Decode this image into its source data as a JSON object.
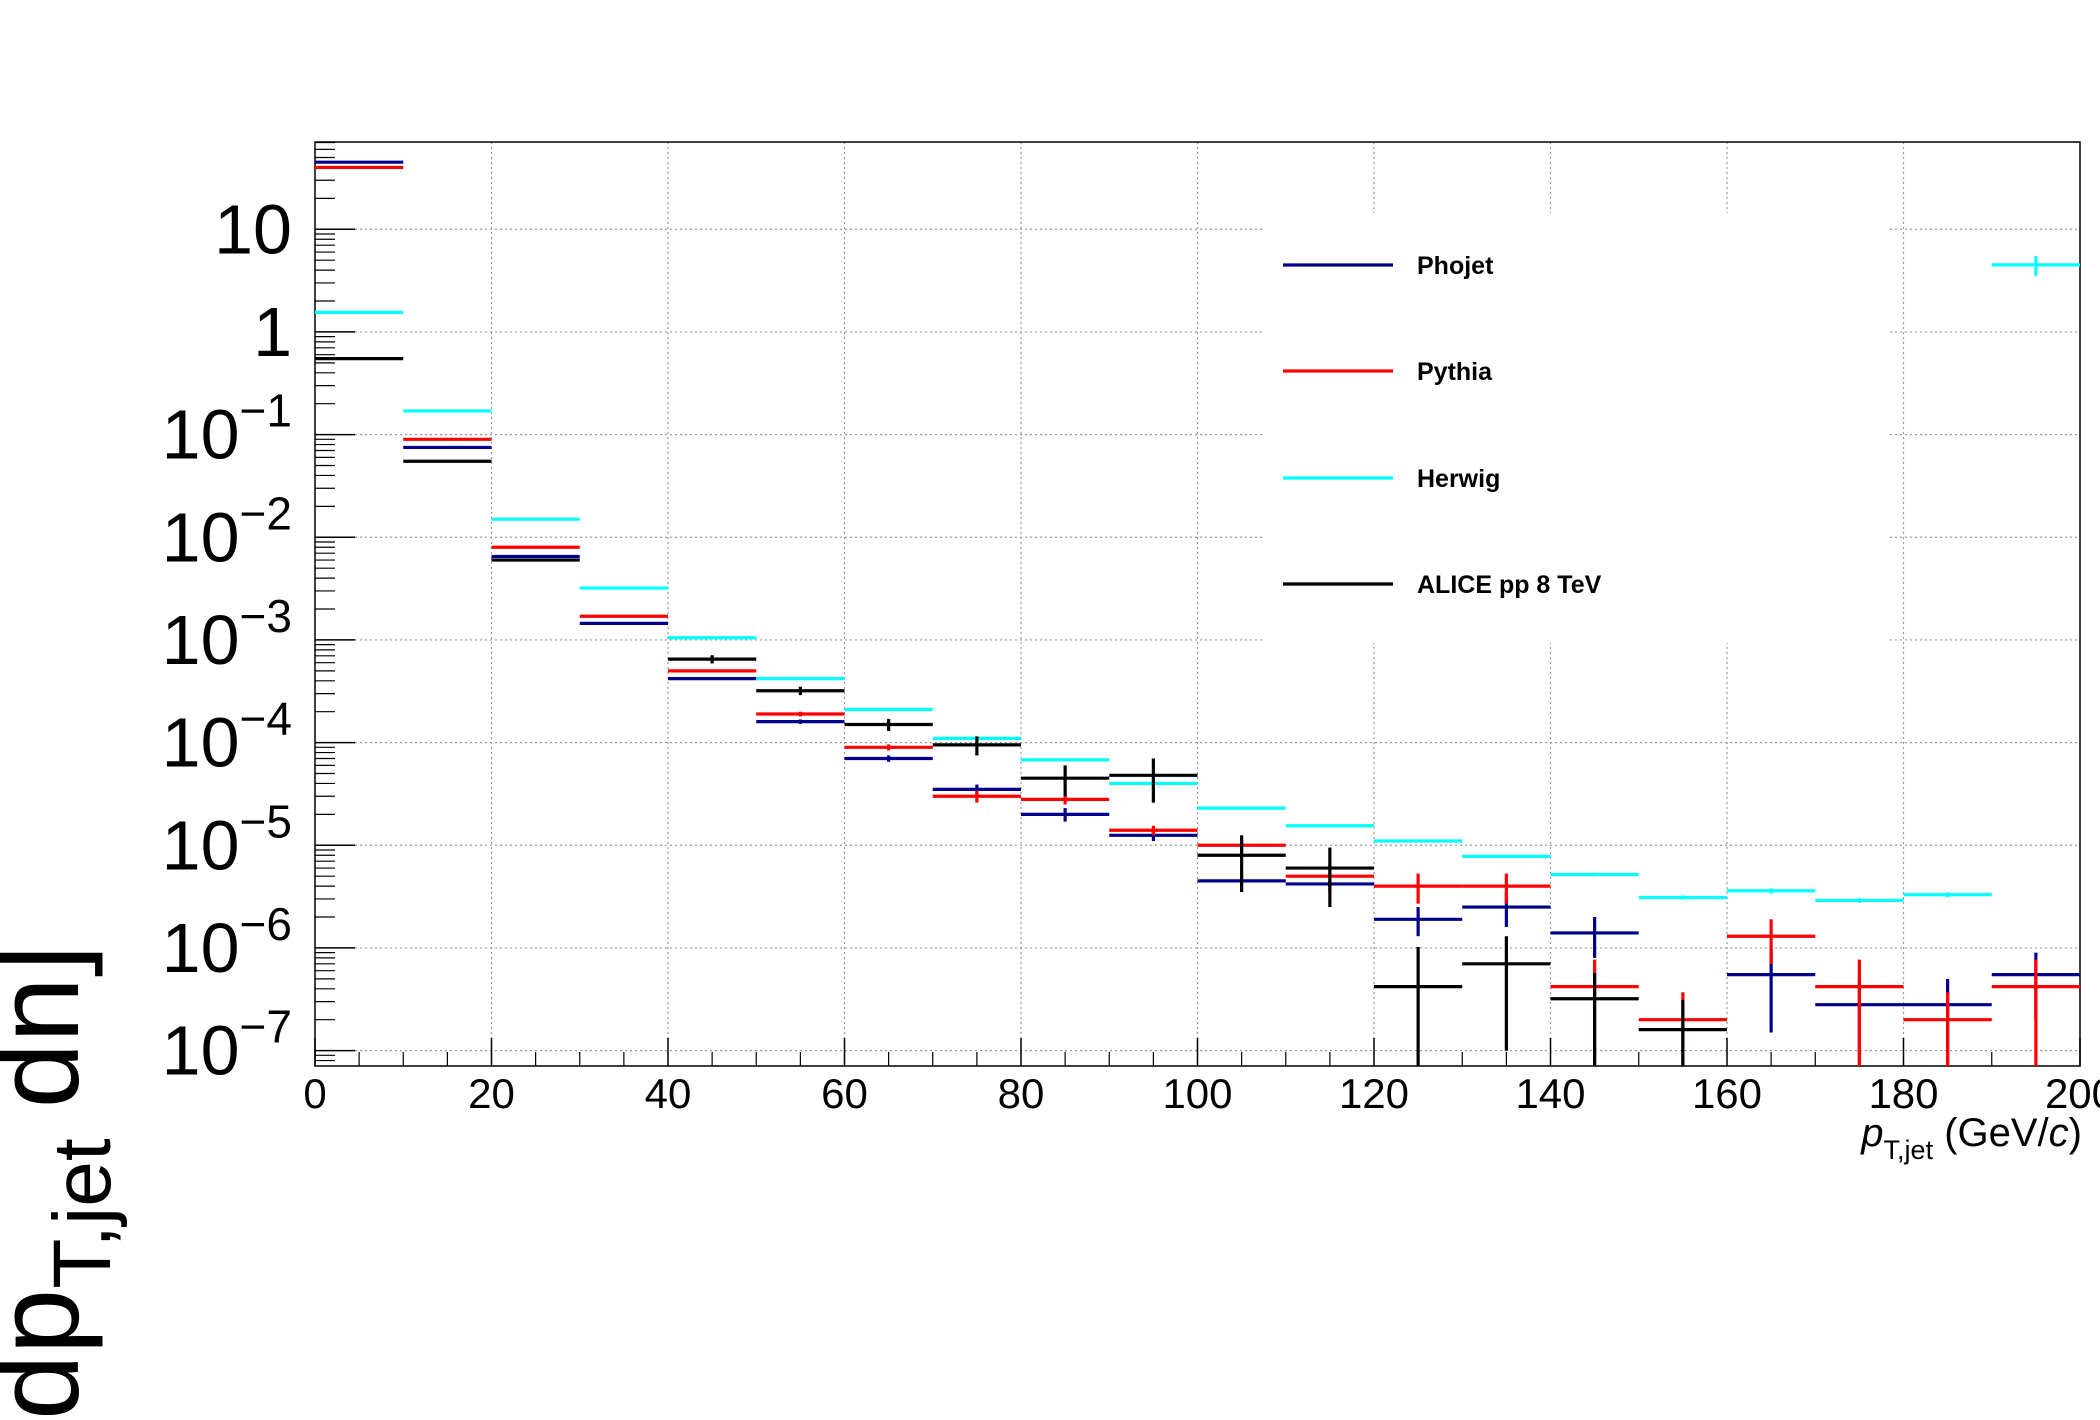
{
  "chart_data": {
    "type": "scatter",
    "title": "",
    "xlabel_main": "p",
    "xlabel_sub": "T,jet",
    "xlabel_unit_open": " (GeV/",
    "xlabel_unit_c": "c",
    "xlabel_unit_close": ")",
    "ylabel_main": "dp",
    "ylabel_sub": "T,jet",
    "ylabel_tail": "dn]",
    "xlim": [
      0,
      200
    ],
    "ylim_log10": [
      -7.15,
      1.85
    ],
    "y_scale": "log",
    "grid": true,
    "legend_position": "top-right",
    "x_ticks": [
      "0",
      "20",
      "40",
      "60",
      "80",
      "100",
      "120",
      "140",
      "160",
      "180",
      "200"
    ],
    "y_ticks": [
      {
        "base": "10",
        "exp": ""
      },
      {
        "base": "1",
        "exp": ""
      },
      {
        "base": "10",
        "exp": "−1"
      },
      {
        "base": "10",
        "exp": "−2"
      },
      {
        "base": "10",
        "exp": "−3"
      },
      {
        "base": "10",
        "exp": "−4"
      },
      {
        "base": "10",
        "exp": "−5"
      },
      {
        "base": "10",
        "exp": "−6"
      },
      {
        "base": "10",
        "exp": "−7"
      }
    ],
    "bin_edges": [
      0,
      10,
      20,
      30,
      40,
      50,
      60,
      70,
      80,
      90,
      100,
      110,
      120,
      130,
      140,
      150,
      160,
      170,
      180,
      190,
      200
    ],
    "series": [
      {
        "name": "Phojet",
        "color": "#00008b",
        "values": [
          45,
          0.075,
          0.0065,
          0.00145,
          0.00042,
          0.00016,
          7e-05,
          3.5e-05,
          2e-05,
          1.25e-05,
          4.5e-06,
          4.2e-06,
          1.9e-06,
          2.5e-06,
          1.4e-06,
          null,
          5.5e-07,
          2.8e-07,
          2.8e-07,
          5.5e-07
        ],
        "errors": [
          0,
          0,
          0,
          0,
          0,
          8e-06,
          5e-06,
          4e-06,
          3e-06,
          1.5e-06,
          3e-07,
          3e-07,
          6e-07,
          9e-07,
          6e-07,
          null,
          4e-07,
          2.2e-07,
          2.2e-07,
          3.5e-07
        ]
      },
      {
        "name": "Pythia",
        "color": "#ff0000",
        "values": [
          40,
          0.09,
          0.008,
          0.0017,
          0.0005,
          0.00019,
          9e-05,
          3e-05,
          2.8e-05,
          1.4e-05,
          1e-05,
          5e-06,
          4e-06,
          4e-06,
          4.2e-07,
          2e-07,
          1.3e-06,
          4.2e-07,
          2e-07,
          4.2e-07
        ],
        "errors": [
          0,
          0,
          0,
          0,
          0,
          1e-05,
          6e-06,
          4e-06,
          3e-06,
          1.5e-06,
          1.5e-06,
          1.5e-06,
          1.3e-06,
          1.3e-06,
          3.5e-07,
          1.7e-07,
          6e-07,
          3.5e-07,
          1.7e-07,
          3.5e-07
        ]
      },
      {
        "name": "Herwig",
        "color": "#00ffff",
        "values": [
          1.55,
          0.17,
          0.015,
          0.0032,
          0.00105,
          0.00042,
          0.00021,
          0.00011,
          6.8e-05,
          4e-05,
          2.3e-05,
          1.55e-05,
          1.1e-05,
          7.8e-06,
          5.2e-06,
          3.1e-06,
          3.6e-06,
          2.9e-06,
          3.3e-06,
          4.5
        ],
        "errors": [
          0.03,
          0.003,
          0.0003,
          6e-05,
          2e-05,
          8e-06,
          4e-06,
          2e-06,
          1.2e-06,
          6e-06,
          5e-07,
          3e-07,
          2e-07,
          2e-07,
          2e-07,
          1.5e-07,
          2e-07,
          1.5e-07,
          1.8e-07,
          1.0
        ]
      },
      {
        "name": "ALICE pp 8 TeV",
        "color": "#000000",
        "values": [
          0.55,
          0.055,
          0.006,
          null,
          0.00065,
          0.00032,
          0.00015,
          9.5e-05,
          4.5e-05,
          4.8e-05,
          8e-06,
          6e-06,
          4.2e-07,
          7e-07,
          3.2e-07,
          1.6e-07,
          null,
          null,
          null,
          null
        ],
        "errors": [
          0,
          0,
          0,
          null,
          6e-05,
          3e-05,
          2e-05,
          2e-05,
          1.5e-05,
          2.2e-05,
          4.5e-06,
          3.5e-06,
          6e-07,
          6e-07,
          2.5e-07,
          1.5e-07,
          null,
          null,
          null,
          null
        ]
      }
    ]
  }
}
